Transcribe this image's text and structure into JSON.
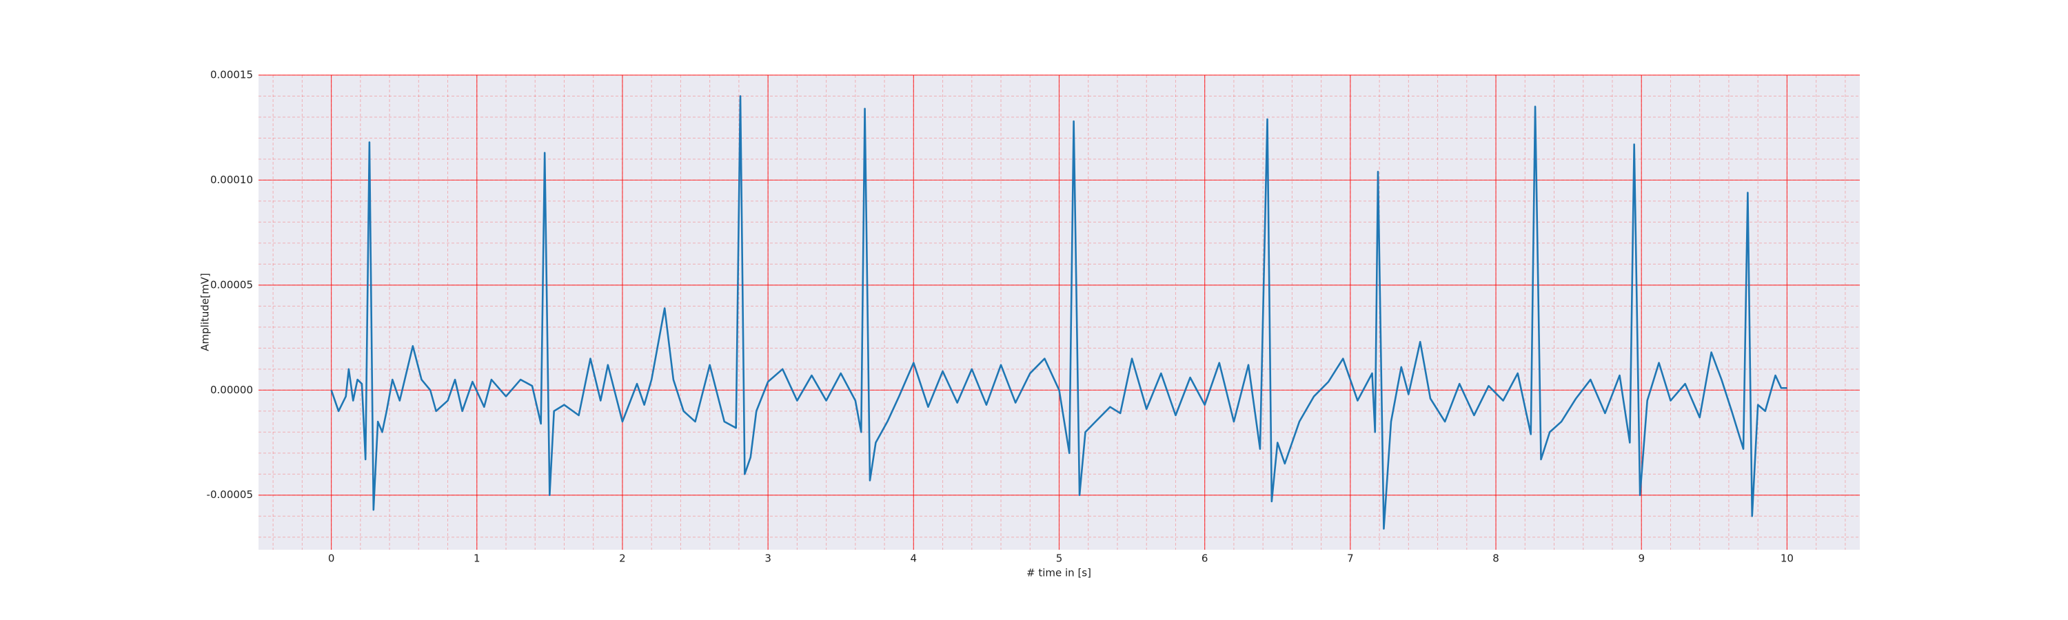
{
  "chart_data": {
    "type": "line",
    "xlabel": "# time in [s]",
    "ylabel": "Amplitude[mV]",
    "xlim": [
      -0.5,
      10.5
    ],
    "xticks": [
      0,
      1,
      2,
      3,
      4,
      5,
      6,
      7,
      8,
      9,
      10
    ],
    "ylim": [
      -7.6e-05,
      0.00015
    ],
    "yticks": [
      {
        "value": -5e-05,
        "label": "-0.00005"
      },
      {
        "value": 0,
        "label": "0.00000"
      },
      {
        "value": 5e-05,
        "label": "0.00005"
      },
      {
        "value": 0.0001,
        "label": "0.00010"
      },
      {
        "value": 0.00015,
        "label": "0.00015"
      }
    ],
    "grid": true,
    "minor_grid": true,
    "grid_color": "#ff0000",
    "background": "#eaeaf2",
    "x": [
      0,
      0.05,
      0.1,
      0.12,
      0.15,
      0.18,
      0.21,
      0.235,
      0.262,
      0.29,
      0.32,
      0.35,
      0.38,
      0.42,
      0.47,
      0.56,
      0.62,
      0.68,
      0.72,
      0.8,
      0.85,
      0.9,
      0.97,
      1.05,
      1.1,
      1.2,
      1.3,
      1.38,
      1.44,
      1.466,
      1.5,
      1.53,
      1.6,
      1.7,
      1.78,
      1.85,
      1.9,
      2.0,
      2.1,
      2.15,
      2.2,
      2.29,
      2.35,
      2.42,
      2.5,
      2.6,
      2.7,
      2.78,
      2.81,
      2.84,
      2.88,
      2.92,
      3.0,
      3.1,
      3.2,
      3.3,
      3.4,
      3.5,
      3.6,
      3.64,
      3.665,
      3.7,
      3.74,
      3.82,
      3.9,
      4.0,
      4.1,
      4.2,
      4.3,
      4.4,
      4.5,
      4.6,
      4.7,
      4.8,
      4.9,
      5.0,
      5.07,
      5.1,
      5.14,
      5.18,
      5.25,
      5.35,
      5.42,
      5.5,
      5.6,
      5.7,
      5.8,
      5.9,
      6.0,
      6.1,
      6.2,
      6.3,
      6.38,
      6.43,
      6.46,
      6.5,
      6.55,
      6.65,
      6.75,
      6.85,
      6.95,
      7.05,
      7.15,
      7.17,
      7.19,
      7.23,
      7.28,
      7.35,
      7.4,
      7.48,
      7.55,
      7.65,
      7.75,
      7.85,
      7.95,
      8.05,
      8.15,
      8.24,
      8.27,
      8.31,
      8.37,
      8.45,
      8.55,
      8.65,
      8.75,
      8.85,
      8.92,
      8.95,
      8.99,
      9.04,
      9.12,
      9.2,
      9.3,
      9.4,
      9.48,
      9.55,
      9.62,
      9.7,
      9.73,
      9.76,
      9.8,
      9.85,
      9.92,
      9.96,
      10.0
    ],
    "series": [
      {
        "color": "#1f77b4",
        "values": [
          0,
          -1e-05,
          -3e-06,
          1e-05,
          -5e-06,
          5e-06,
          3e-06,
          -3.3e-05,
          0.000118,
          -5.7e-05,
          -1.5e-05,
          -2e-05,
          -1e-05,
          5e-06,
          -5e-06,
          2.1e-05,
          5e-06,
          0,
          -1e-05,
          -5e-06,
          5e-06,
          -1e-05,
          4e-06,
          -8e-06,
          5e-06,
          -3e-06,
          5e-06,
          2e-06,
          -1.6e-05,
          0.000113,
          -5e-05,
          -1e-05,
          -7e-06,
          -1.2e-05,
          1.5e-05,
          -5e-06,
          1.2e-05,
          -1.5e-05,
          3e-06,
          -7e-06,
          5e-06,
          3.9e-05,
          5e-06,
          -1e-05,
          -1.5e-05,
          1.2e-05,
          -1.5e-05,
          -1.8e-05,
          0.00014,
          -4e-05,
          -3.2e-05,
          -1e-05,
          4e-06,
          1e-05,
          -5e-06,
          7e-06,
          -5e-06,
          8e-06,
          -5e-06,
          -2e-05,
          0.000134,
          -4.3e-05,
          -2.5e-05,
          -1.5e-05,
          -3e-06,
          1.3e-05,
          -8e-06,
          9e-06,
          -6e-06,
          1e-05,
          -7e-06,
          1.2e-05,
          -6e-06,
          8e-06,
          1.5e-05,
          0,
          -3e-05,
          0.000128,
          -5e-05,
          -2e-05,
          -1.5e-05,
          -8e-06,
          -1.1e-05,
          1.5e-05,
          -9e-06,
          8e-06,
          -1.2e-05,
          6e-06,
          -7e-06,
          1.3e-05,
          -1.5e-05,
          1.2e-05,
          -2.8e-05,
          0.000129,
          -5.3e-05,
          -2.5e-05,
          -3.5e-05,
          -1.5e-05,
          -3e-06,
          4e-06,
          1.5e-05,
          -5e-06,
          8e-06,
          -2e-05,
          0.000104,
          -6.6e-05,
          -1.5e-05,
          1.1e-05,
          -2e-06,
          2.3e-05,
          -4e-06,
          -1.5e-05,
          3e-06,
          -1.2e-05,
          2e-06,
          -5e-06,
          8e-06,
          -2.1e-05,
          0.000135,
          -3.3e-05,
          -2e-05,
          -1.5e-05,
          -4e-06,
          5e-06,
          -1.1e-05,
          7e-06,
          -2.5e-05,
          0.000117,
          -5e-05,
          -5e-06,
          1.3e-05,
          -5e-06,
          3e-06,
          -1.3e-05,
          1.8e-05,
          5e-06,
          -1e-05,
          -2.8e-05,
          9.4e-05,
          -6e-05,
          -7e-06,
          -1e-05,
          7e-06,
          1e-06,
          1e-06
        ]
      }
    ]
  }
}
